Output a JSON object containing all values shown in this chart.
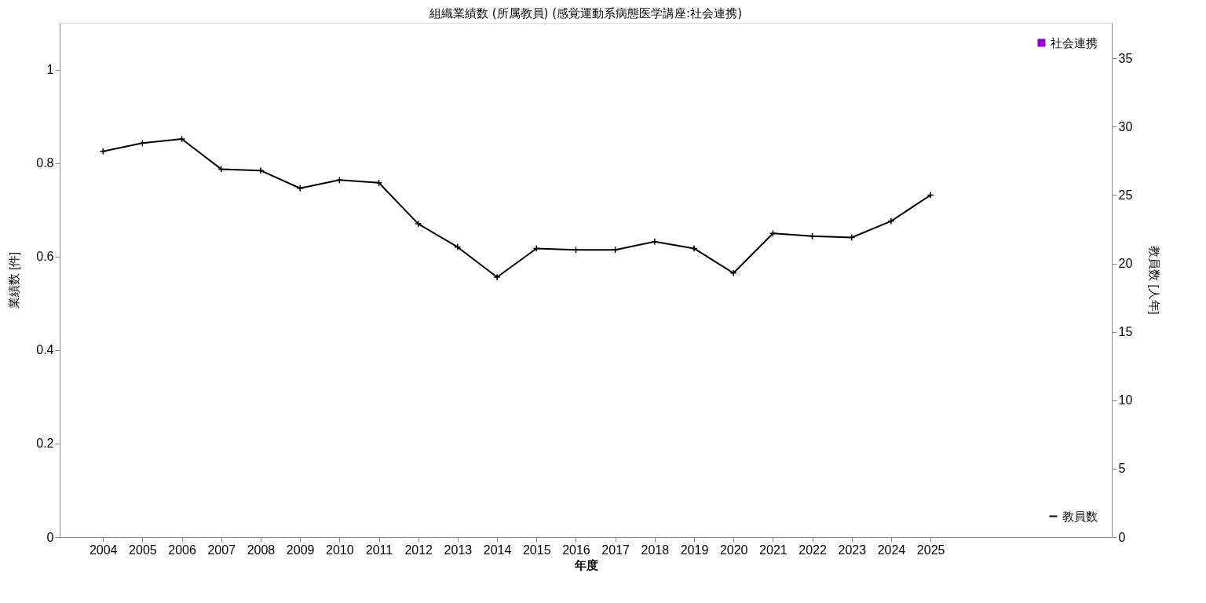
{
  "chart_data": {
    "type": "bar",
    "title": "組織業績数 (所属教員) (感覚運動系病態医学講座:社会連携)",
    "xlabel": "年度",
    "ylabel": "業績数 [件]",
    "y2label": "教員数 [人年]",
    "x": [
      2004,
      2005,
      2006,
      2007,
      2008,
      2009,
      2010,
      2011,
      2012,
      2013,
      2014,
      2015,
      2016,
      2017,
      2018,
      2019,
      2020,
      2021,
      2022,
      2023,
      2024,
      2025
    ],
    "xlim": [
      2003,
      2029.5
    ],
    "xticks": [
      2004,
      2005,
      2006,
      2007,
      2008,
      2009,
      2010,
      2011,
      2012,
      2013,
      2014,
      2015,
      2016,
      2017,
      2018,
      2019,
      2020,
      2021,
      2022,
      2023,
      2024,
      2025
    ],
    "ylim": [
      0,
      1.1
    ],
    "yticks": [
      0,
      0.2,
      0.4,
      0.6,
      0.8,
      1
    ],
    "y2lim": [
      0,
      37.6
    ],
    "y2ticks": [
      0,
      5,
      10,
      15,
      20,
      25,
      30,
      35
    ],
    "series": [
      {
        "name": "社会連携",
        "color": "#9400d3",
        "values": [
          0,
          0,
          0,
          0,
          0,
          0,
          0,
          0,
          0,
          0,
          0,
          0,
          0,
          0,
          0,
          0,
          0,
          0,
          0,
          0,
          0,
          0
        ]
      },
      {
        "name": "教員数",
        "type": "line",
        "axis": "y2",
        "color": "#000000",
        "marker": "cross",
        "values": [
          28.2,
          28.8,
          29.1,
          26.9,
          26.8,
          25.5,
          26.1,
          25.9,
          22.9,
          21.2,
          19.0,
          21.1,
          21.0,
          21.0,
          21.6,
          21.1,
          19.3,
          22.2,
          22.0,
          21.9,
          23.1,
          25.0
        ]
      }
    ],
    "grid": false,
    "legend": "right"
  }
}
